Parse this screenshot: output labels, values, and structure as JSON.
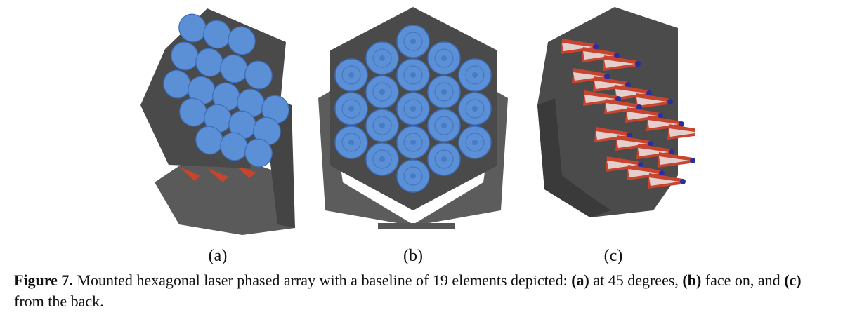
{
  "subfigure_labels": [
    "(a)",
    "(b)",
    "(c)"
  ],
  "caption": {
    "label": "Figure 7.",
    "text_1": " Mounted hexagonal laser phased array with a baseline of 19 elements depicted: ",
    "a_tag": "(a)",
    "text_2": " at 45 degrees, ",
    "b_tag": "(b)",
    "text_3": " face on, and ",
    "c_tag": "(c)",
    "text_4": " from the back."
  },
  "colors": {
    "panel_dark": "#4b4b4b",
    "mount_gray": "#5c5c5c",
    "lens_blue": "#5b8fd6",
    "lens_ring": "#3d6db8",
    "horn_red": "#c8442e",
    "horn_tip": "#2a2fa0"
  }
}
